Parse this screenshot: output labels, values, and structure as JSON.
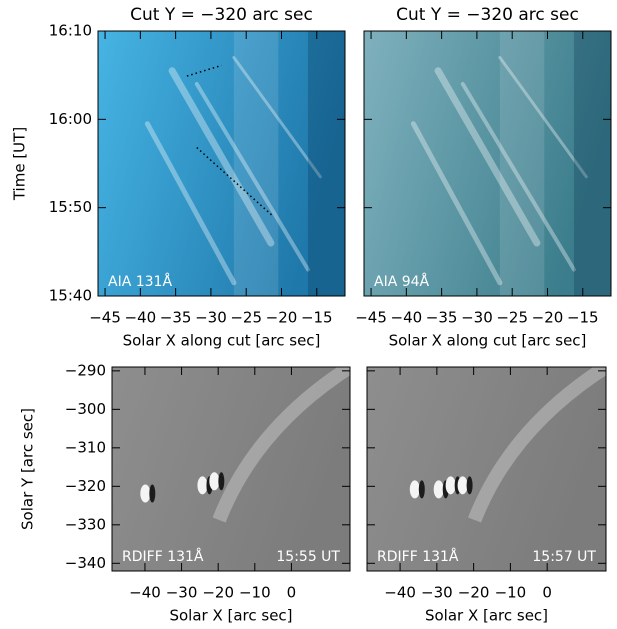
{
  "chart_data": [
    {
      "type": "image",
      "title": "Cut Y = −320 arc sec",
      "x_label": "Solar X along cut [arc sec]",
      "y_label": "Time [UT]",
      "annotations": [
        "AIA 131Å"
      ],
      "colormap": [
        "#46b4e4",
        "#1f78aa"
      ],
      "xlim": [
        -46,
        -11
      ],
      "xticks": [
        {
          "value": -45,
          "label": "−45"
        },
        {
          "value": -40,
          "label": "−40"
        },
        {
          "value": -35,
          "label": "−35"
        },
        {
          "value": -30,
          "label": "−30"
        },
        {
          "value": -25,
          "label": "−25"
        },
        {
          "value": -20,
          "label": "−20"
        },
        {
          "value": -15,
          "label": "−15"
        }
      ],
      "ylim": [
        "15:40",
        "16:10"
      ],
      "yticks": [
        "15:40",
        "15:50",
        "16:00",
        "16:10"
      ]
    },
    {
      "type": "image",
      "title": "Cut Y = −320 arc sec",
      "x_label": "Solar X along cut [arc sec]",
      "annotations": [
        "AIA 94Å"
      ],
      "colormap": [
        "#7fb1bd",
        "#3b7d8c"
      ],
      "xlim": [
        -46,
        -11
      ],
      "xticks": [
        {
          "value": -45,
          "label": "−45"
        },
        {
          "value": -40,
          "label": "−40"
        },
        {
          "value": -35,
          "label": "−35"
        },
        {
          "value": -30,
          "label": "−30"
        },
        {
          "value": -25,
          "label": "−25"
        },
        {
          "value": -20,
          "label": "−20"
        },
        {
          "value": -15,
          "label": "−15"
        }
      ],
      "ylim": [
        "15:40",
        "16:10"
      ],
      "yticks": [
        "15:40",
        "15:50",
        "16:00",
        "16:10"
      ]
    },
    {
      "type": "image",
      "x_label": "Solar X [arc sec]",
      "y_label": "Solar Y [arc sec]",
      "annotations": [
        "RDIFF 131Å",
        "15:55 UT"
      ],
      "colormap": [
        "#8e8e8e",
        "#7c7c7c"
      ],
      "xlim": [
        -49,
        16
      ],
      "xticks": [
        {
          "value": -40,
          "label": "−40"
        },
        {
          "value": -30,
          "label": "−30"
        },
        {
          "value": -20,
          "label": "−20"
        },
        {
          "value": -10,
          "label": "−10"
        },
        0
      ],
      "ylim": [
        -342,
        -289
      ],
      "yticks": [
        {
          "value": -340,
          "label": "−340"
        },
        {
          "value": -330,
          "label": "−330"
        },
        {
          "value": -320,
          "label": "−320"
        },
        {
          "value": -310,
          "label": "−310"
        },
        {
          "value": -300,
          "label": "−300"
        },
        {
          "value": -290,
          "label": "−290"
        }
      ]
    },
    {
      "type": "image",
      "x_label": "Solar X [arc sec]",
      "annotations": [
        "RDIFF 131Å",
        "15:57 UT"
      ],
      "colormap": [
        "#8e8e8e",
        "#7c7c7c"
      ],
      "xlim": [
        -49,
        16
      ],
      "xticks": [
        {
          "value": -40,
          "label": "−40"
        },
        {
          "value": -30,
          "label": "−30"
        },
        {
          "value": -20,
          "label": "−20"
        },
        {
          "value": -10,
          "label": "−10"
        },
        0
      ],
      "ylim": [
        -342,
        -289
      ],
      "yticks": [
        {
          "value": -340,
          "label": "−340"
        },
        {
          "value": -330,
          "label": "−330"
        },
        {
          "value": -320,
          "label": "−320"
        },
        {
          "value": -310,
          "label": "−310"
        },
        {
          "value": -300,
          "label": "−300"
        },
        {
          "value": -290,
          "label": "−290"
        }
      ]
    }
  ]
}
